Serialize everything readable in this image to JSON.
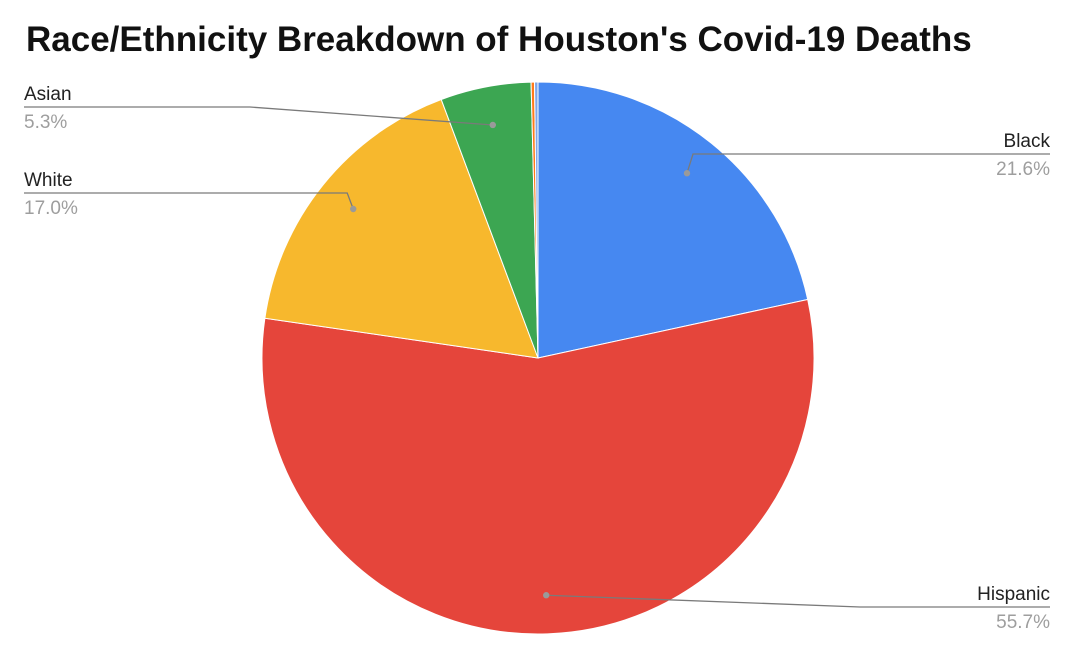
{
  "chart_data": {
    "type": "pie",
    "title": "Race/Ethnicity Breakdown of Houston's Covid-19 Deaths",
    "slices": [
      {
        "label": "Black",
        "value": 21.6,
        "pct_label": "21.6%",
        "color": "#4688f1"
      },
      {
        "label": "Hispanic",
        "value": 55.7,
        "pct_label": "55.7%",
        "color": "#e5453b"
      },
      {
        "label": "White",
        "value": 17.0,
        "pct_label": "17.0%",
        "color": "#f7b82d"
      },
      {
        "label": "Asian",
        "value": 5.3,
        "pct_label": "5.3%",
        "color": "#3ca652"
      },
      {
        "label": "",
        "value": 0.2,
        "pct_label": "",
        "color": "#ff7a1a"
      },
      {
        "label": "",
        "value": 0.2,
        "pct_label": "",
        "color": "#7fa7e8"
      }
    ],
    "start_angle": 0,
    "direction": "clockwise",
    "legend": "none",
    "label_style": "outside-leader-lines"
  }
}
